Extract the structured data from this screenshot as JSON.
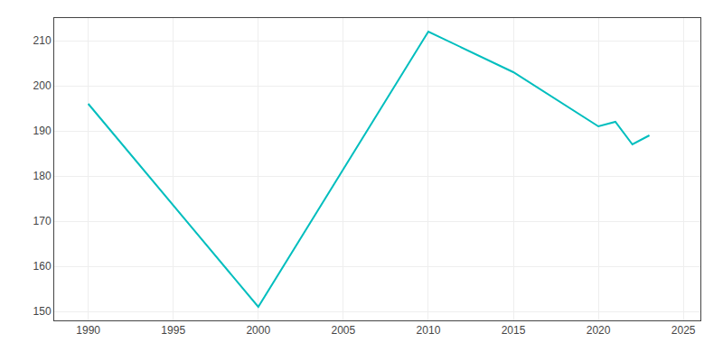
{
  "chart_data": {
    "type": "line",
    "x": [
      1990,
      2000,
      2010,
      2015,
      2020,
      2021,
      2022,
      2023
    ],
    "values": [
      196,
      151,
      212,
      203,
      191,
      192,
      187,
      189
    ],
    "color": "#00BEBE",
    "xlim": [
      1988,
      2026
    ],
    "ylim": [
      148,
      215
    ],
    "xticks": [
      1990,
      1995,
      2000,
      2005,
      2010,
      2015,
      2020,
      2025
    ],
    "yticks": [
      150,
      160,
      170,
      180,
      190,
      200,
      210
    ],
    "grid": true
  }
}
